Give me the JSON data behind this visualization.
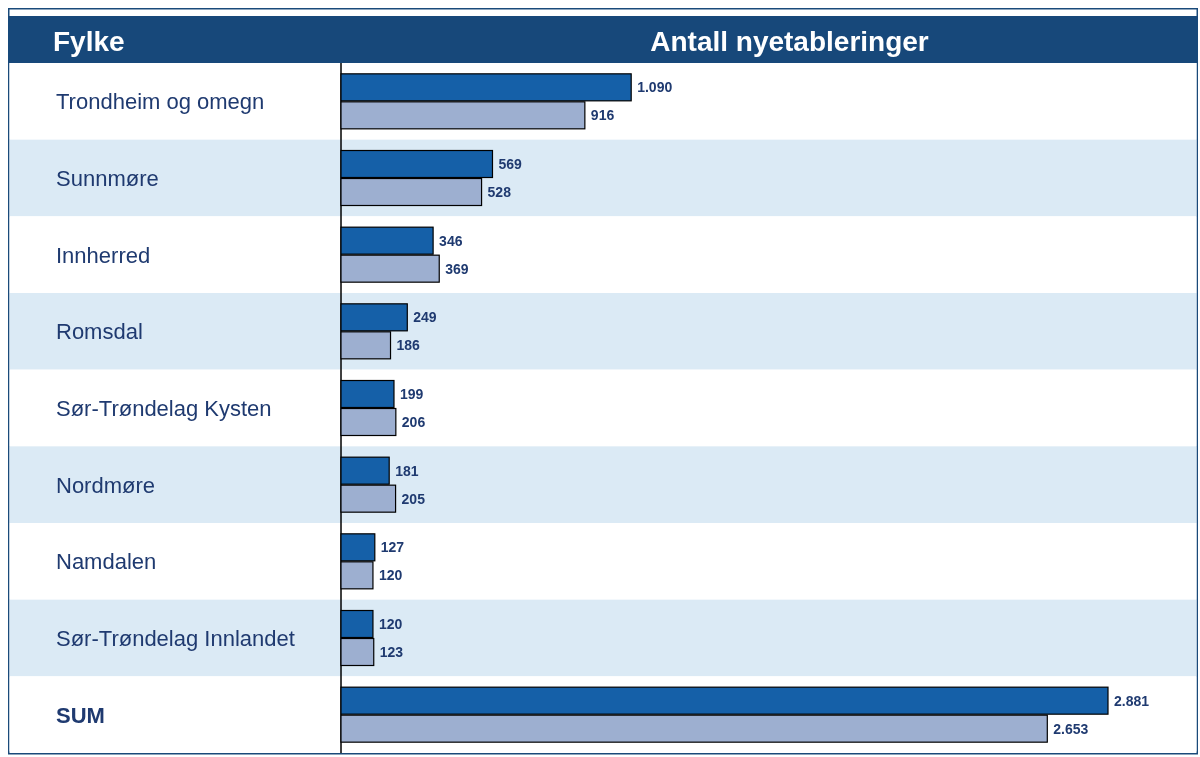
{
  "chart_data": {
    "type": "bar",
    "orientation": "horizontal",
    "title": "Antall nyetableringer",
    "ylabel": "Fylke",
    "categories": [
      "Trondheim og omegn",
      "Sunnmøre",
      "Innherred",
      "Romsdal",
      "Sør-Trøndelag Kysten",
      "Nordmøre",
      "Namdalen",
      "Sør-Trøndelag Innlandet",
      "SUM"
    ],
    "series": [
      {
        "color": "#1560a8",
        "values": [
          1090,
          569,
          346,
          249,
          199,
          181,
          127,
          120,
          2881
        ],
        "value_labels": [
          "1.090",
          "569",
          "346",
          "249",
          "199",
          "181",
          "127",
          "120",
          "2.881"
        ]
      },
      {
        "color": "#9dafd0",
        "values": [
          916,
          528,
          369,
          186,
          206,
          205,
          120,
          123,
          2653
        ],
        "value_labels": [
          "916",
          "528",
          "369",
          "186",
          "206",
          "205",
          "120",
          "123",
          "2.653"
        ]
      }
    ]
  }
}
